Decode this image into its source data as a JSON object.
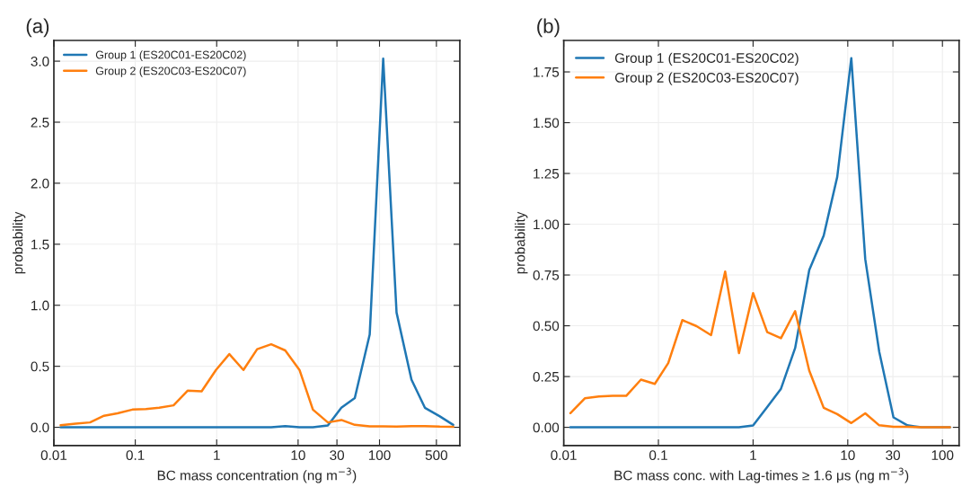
{
  "chart_data": [
    {
      "type": "line",
      "title": "(a)",
      "xlabel": "BC mass concentration (ng m$^{−3}$)",
      "ylabel": "probability",
      "log": "x",
      "grid": true,
      "legend": "top left",
      "x": [
        0.0121,
        0.0185,
        0.0278,
        0.0413,
        0.0604,
        0.0921,
        0.135,
        0.197,
        0.295,
        0.439,
        0.653,
        0.98,
        1.43,
        2.13,
        3.14,
        4.67,
        6.95,
        10.4,
        15.2,
        23.2,
        34.0,
        49.7,
        75.8,
        111,
        162,
        247,
        361,
        551,
        805
      ],
      "series": [
        {
          "name": "Group 1 (ES20C01-ES20C02)",
          "color": "#1f77b4",
          "values": [
            0,
            0,
            0,
            0,
            0,
            0,
            0,
            0,
            0,
            0,
            0,
            0,
            0,
            0,
            0,
            0,
            0.01,
            0,
            0,
            0.015,
            0.16,
            0.24,
            0.76,
            3.02,
            0.94,
            0.39,
            0.16,
            0.09,
            0.02
          ]
        },
        {
          "name": "Group 2 (ES20C03-ES20C07)",
          "color": "#ff7f0e",
          "values": [
            0.017,
            0.03,
            0.04,
            0.095,
            0.115,
            0.145,
            0.15,
            0.16,
            0.18,
            0.3,
            0.295,
            0.47,
            0.6,
            0.47,
            0.64,
            0.68,
            0.63,
            0.47,
            0.145,
            0.04,
            0.06,
            0.02,
            0.008,
            0.008,
            0.006,
            0.01,
            0.01,
            0.006,
            0.005
          ]
        }
      ],
      "xlim": [
        0.01,
        970
      ],
      "xticks": [
        0.01,
        0.1,
        1,
        10,
        30,
        100,
        500
      ],
      "ylim": [
        -0.15,
        3.17
      ],
      "yticks": [
        {
          "value": 0,
          "label": "0.0"
        },
        {
          "value": 0.5,
          "label": "0.5"
        },
        {
          "value": 1,
          "label": "1.0"
        },
        {
          "value": 1.5,
          "label": "1.5"
        },
        {
          "value": 2,
          "label": "2.0"
        },
        {
          "value": 2.5,
          "label": "2.5"
        },
        {
          "value": 3,
          "label": "3.0"
        }
      ]
    },
    {
      "type": "line",
      "title": "(b)",
      "xlabel": "BC mass conc. with Lag-times ≥ 1.6 μs (ng m$^{−3}$)",
      "ylabel": "probability",
      "log": "x",
      "grid": true,
      "legend": "top left",
      "x": [
        0.01175,
        0.0167,
        0.0235,
        0.0329,
        0.0457,
        0.0654,
        0.0916,
        0.127,
        0.179,
        0.253,
        0.36,
        0.507,
        0.71,
        1.0,
        1.41,
        1.97,
        2.78,
        3.92,
        5.57,
        7.74,
        10.9,
        15.3,
        21.5,
        30.4,
        42.6,
        60.0,
        84.5,
        120
      ],
      "series": [
        {
          "name": "Group 1 (ES20C01-ES20C02)",
          "color": "#1f77b4",
          "values": [
            0,
            0,
            0,
            0,
            0,
            0,
            0,
            0,
            0,
            0,
            0,
            0,
            0,
            0.009,
            0.1,
            0.19,
            0.39,
            0.775,
            0.944,
            1.233,
            1.818,
            0.828,
            0.372,
            0.049,
            0.01,
            0,
            0,
            0
          ]
        },
        {
          "name": "Group 2 (ES20C03-ES20C07)",
          "color": "#ff7f0e",
          "values": [
            0.07,
            0.143,
            0.152,
            0.155,
            0.155,
            0.235,
            0.214,
            0.316,
            0.528,
            0.498,
            0.454,
            0.767,
            0.365,
            0.661,
            0.469,
            0.439,
            0.572,
            0.279,
            0.096,
            0.065,
            0.021,
            0.069,
            0.01,
            0.003,
            0.003,
            0,
            0,
            0
          ]
        }
      ],
      "xlim": [
        0.01,
        150
      ],
      "xticks": [
        0.01,
        0.1,
        1,
        10,
        30,
        100
      ],
      "ylim": [
        -0.09,
        1.905
      ],
      "yticks": [
        {
          "value": 0,
          "label": "0.00"
        },
        {
          "value": 0.25,
          "label": "0.25"
        },
        {
          "value": 0.5,
          "label": "0.50"
        },
        {
          "value": 0.75,
          "label": "0.75"
        },
        {
          "value": 1,
          "label": "1.00"
        },
        {
          "value": 1.25,
          "label": "1.25"
        },
        {
          "value": 1.5,
          "label": "1.50"
        },
        {
          "value": 1.75,
          "label": "1.75"
        }
      ]
    }
  ]
}
